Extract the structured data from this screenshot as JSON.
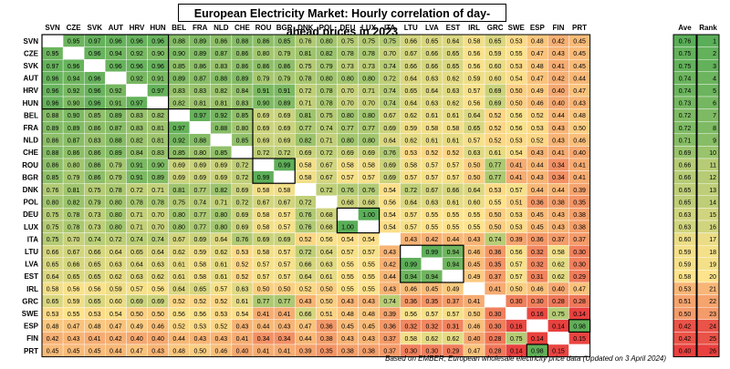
{
  "title": "European Electricity Market: Hourly correlation of day-ahead prices in 2023",
  "footnote": "Based on EMBER, European wholesale electricity price data (Updated on 3 April 2024)",
  "chart_data": {
    "type": "heatmap",
    "countries": [
      "SVN",
      "CZE",
      "SVK",
      "AUT",
      "HRV",
      "HUN",
      "BEL",
      "FRA",
      "NLD",
      "CHE",
      "ROU",
      "BGR",
      "DNK",
      "POL",
      "DEU",
      "LUX",
      "ITA",
      "LTU",
      "LVA",
      "EST",
      "IRL",
      "GRC",
      "SWE",
      "ESP",
      "FIN",
      "PRT"
    ],
    "matrix": [
      [
        null,
        0.95,
        0.97,
        0.96,
        0.96,
        0.96,
        0.88,
        0.89,
        0.86,
        0.88,
        0.86,
        0.85,
        0.76,
        0.8,
        0.75,
        0.75,
        0.75,
        0.66,
        0.65,
        0.64,
        0.58,
        0.65,
        0.53,
        0.48,
        0.42,
        0.45
      ],
      [
        0.95,
        null,
        0.96,
        0.94,
        0.92,
        0.9,
        0.9,
        0.89,
        0.87,
        0.86,
        0.8,
        0.79,
        0.81,
        0.82,
        0.78,
        0.78,
        0.7,
        0.67,
        0.66,
        0.65,
        0.56,
        0.59,
        0.55,
        0.47,
        0.43,
        0.45
      ],
      [
        0.97,
        0.96,
        null,
        0.96,
        0.96,
        0.96,
        0.85,
        0.86,
        0.83,
        0.86,
        0.86,
        0.86,
        0.75,
        0.79,
        0.73,
        0.73,
        0.74,
        0.66,
        0.66,
        0.65,
        0.56,
        0.6,
        0.53,
        0.48,
        0.41,
        0.45
      ],
      [
        0.96,
        0.94,
        0.96,
        null,
        0.92,
        0.91,
        0.89,
        0.87,
        0.88,
        0.89,
        0.79,
        0.79,
        0.78,
        0.8,
        0.8,
        0.8,
        0.72,
        0.64,
        0.63,
        0.62,
        0.59,
        0.6,
        0.54,
        0.47,
        0.42,
        0.44
      ],
      [
        0.96,
        0.92,
        0.96,
        0.92,
        null,
        0.97,
        0.83,
        0.83,
        0.82,
        0.84,
        0.91,
        0.91,
        0.72,
        0.78,
        0.7,
        0.71,
        0.74,
        0.65,
        0.64,
        0.63,
        0.57,
        0.69,
        0.5,
        0.49,
        0.4,
        0.47
      ],
      [
        0.96,
        0.9,
        0.96,
        0.91,
        0.97,
        null,
        0.82,
        0.81,
        0.81,
        0.83,
        0.9,
        0.89,
        0.71,
        0.78,
        0.7,
        0.7,
        0.74,
        0.64,
        0.63,
        0.62,
        0.56,
        0.69,
        0.5,
        0.46,
        0.4,
        0.43
      ],
      [
        0.88,
        0.9,
        0.85,
        0.89,
        0.83,
        0.82,
        null,
        0.97,
        0.92,
        0.85,
        0.69,
        0.69,
        0.81,
        0.75,
        0.8,
        0.8,
        0.67,
        0.62,
        0.61,
        0.61,
        0.64,
        0.52,
        0.56,
        0.52,
        0.44,
        0.48
      ],
      [
        0.89,
        0.89,
        0.86,
        0.87,
        0.83,
        0.81,
        0.97,
        null,
        0.88,
        0.8,
        0.69,
        0.69,
        0.77,
        0.74,
        0.77,
        0.77,
        0.69,
        0.59,
        0.58,
        0.58,
        0.65,
        0.52,
        0.56,
        0.53,
        0.43,
        0.5
      ],
      [
        0.86,
        0.87,
        0.83,
        0.88,
        0.82,
        0.81,
        0.92,
        0.88,
        null,
        0.85,
        0.69,
        0.69,
        0.82,
        0.71,
        0.8,
        0.8,
        0.64,
        0.62,
        0.61,
        0.61,
        0.57,
        0.52,
        0.53,
        0.52,
        0.43,
        0.46
      ],
      [
        0.88,
        0.86,
        0.86,
        0.89,
        0.84,
        0.83,
        0.85,
        0.8,
        0.85,
        null,
        0.72,
        0.72,
        0.69,
        0.72,
        0.69,
        0.69,
        0.76,
        0.53,
        0.52,
        0.52,
        0.63,
        0.61,
        0.54,
        0.43,
        0.41,
        0.4
      ],
      [
        0.86,
        0.8,
        0.86,
        0.79,
        0.91,
        0.9,
        0.69,
        0.69,
        0.69,
        0.72,
        null,
        0.99,
        0.58,
        0.67,
        0.58,
        0.58,
        0.69,
        0.58,
        0.57,
        0.57,
        0.5,
        0.77,
        0.41,
        0.44,
        0.34,
        0.41
      ],
      [
        0.85,
        0.79,
        0.86,
        0.79,
        0.91,
        0.89,
        0.69,
        0.69,
        0.69,
        0.72,
        0.99,
        null,
        0.58,
        0.67,
        0.57,
        0.57,
        0.69,
        0.57,
        0.57,
        0.57,
        0.5,
        0.77,
        0.41,
        0.43,
        0.34,
        0.41
      ],
      [
        0.76,
        0.81,
        0.75,
        0.78,
        0.72,
        0.71,
        0.81,
        0.77,
        0.82,
        0.69,
        0.58,
        0.58,
        null,
        0.72,
        0.76,
        0.76,
        0.54,
        0.72,
        0.67,
        0.66,
        0.64,
        0.53,
        0.57,
        0.44,
        0.44,
        0.39
      ],
      [
        0.8,
        0.82,
        0.79,
        0.8,
        0.78,
        0.78,
        0.75,
        0.74,
        0.71,
        0.72,
        0.67,
        0.67,
        0.72,
        null,
        0.68,
        0.68,
        0.56,
        0.64,
        0.63,
        0.61,
        0.6,
        0.55,
        0.51,
        0.36,
        0.38,
        0.35
      ],
      [
        0.75,
        0.78,
        0.73,
        0.8,
        0.71,
        0.7,
        0.8,
        0.77,
        0.8,
        0.69,
        0.58,
        0.57,
        0.76,
        0.68,
        null,
        1.0,
        0.54,
        0.57,
        0.55,
        0.55,
        0.55,
        0.5,
        0.53,
        0.45,
        0.43,
        0.38
      ],
      [
        0.75,
        0.78,
        0.73,
        0.8,
        0.71,
        0.7,
        0.8,
        0.77,
        0.8,
        0.69,
        0.58,
        0.57,
        0.76,
        0.68,
        1.0,
        null,
        0.54,
        0.57,
        0.55,
        0.55,
        0.55,
        0.5,
        0.53,
        0.45,
        0.43,
        0.38
      ],
      [
        0.75,
        0.7,
        0.74,
        0.72,
        0.74,
        0.74,
        0.67,
        0.69,
        0.64,
        0.76,
        0.69,
        0.69,
        0.52,
        0.56,
        0.54,
        0.54,
        null,
        0.43,
        0.42,
        0.44,
        0.43,
        0.74,
        0.39,
        0.36,
        0.37,
        0.37
      ],
      [
        0.66,
        0.67,
        0.66,
        0.64,
        0.65,
        0.64,
        0.62,
        0.59,
        0.62,
        0.53,
        0.58,
        0.57,
        0.72,
        0.64,
        0.57,
        0.57,
        0.43,
        null,
        0.99,
        0.94,
        0.46,
        0.36,
        0.56,
        0.32,
        0.58,
        0.3
      ],
      [
        0.65,
        0.66,
        0.65,
        0.63,
        0.64,
        0.63,
        0.61,
        0.58,
        0.61,
        0.52,
        0.57,
        0.57,
        0.66,
        0.63,
        0.55,
        0.55,
        0.42,
        0.99,
        null,
        0.94,
        0.45,
        0.35,
        0.57,
        0.32,
        0.62,
        0.3
      ],
      [
        0.64,
        0.65,
        0.65,
        0.62,
        0.63,
        0.62,
        0.61,
        0.58,
        0.61,
        0.52,
        0.57,
        0.57,
        0.64,
        0.61,
        0.55,
        0.55,
        0.44,
        0.94,
        0.94,
        null,
        0.49,
        0.37,
        0.57,
        0.31,
        0.62,
        0.29
      ],
      [
        0.58,
        0.56,
        0.56,
        0.59,
        0.57,
        0.56,
        0.64,
        0.65,
        0.57,
        0.63,
        0.5,
        0.5,
        0.52,
        0.5,
        0.55,
        0.55,
        0.43,
        0.46,
        0.45,
        0.49,
        null,
        0.41,
        0.5,
        0.46,
        0.4,
        0.47
      ],
      [
        0.65,
        0.59,
        0.65,
        0.6,
        0.69,
        0.69,
        0.52,
        0.52,
        0.52,
        0.61,
        0.77,
        0.77,
        0.43,
        0.5,
        0.43,
        0.43,
        0.74,
        0.36,
        0.35,
        0.37,
        0.41,
        null,
        0.3,
        0.3,
        0.28,
        0.28
      ],
      [
        0.53,
        0.55,
        0.53,
        0.54,
        0.5,
        0.5,
        0.56,
        0.56,
        0.53,
        0.54,
        0.41,
        0.41,
        0.66,
        0.51,
        0.48,
        0.48,
        0.39,
        0.56,
        0.57,
        0.57,
        0.5,
        0.3,
        null,
        0.16,
        0.75,
        0.14
      ],
      [
        0.48,
        0.47,
        0.48,
        0.47,
        0.49,
        0.46,
        0.52,
        0.53,
        0.52,
        0.43,
        0.44,
        0.43,
        0.47,
        0.36,
        0.45,
        0.45,
        0.36,
        0.32,
        0.32,
        0.31,
        0.46,
        0.3,
        0.16,
        null,
        0.14,
        0.98
      ],
      [
        0.42,
        0.43,
        0.41,
        0.42,
        0.4,
        0.4,
        0.44,
        0.43,
        0.43,
        0.41,
        0.34,
        0.34,
        0.44,
        0.38,
        0.43,
        0.43,
        0.37,
        0.58,
        0.62,
        0.62,
        0.4,
        0.28,
        0.75,
        0.14,
        null,
        0.15
      ],
      [
        0.45,
        0.45,
        0.45,
        0.44,
        0.47,
        0.43,
        0.48,
        0.5,
        0.46,
        0.4,
        0.41,
        0.41,
        0.39,
        0.35,
        0.38,
        0.38,
        0.37,
        0.3,
        0.3,
        0.29,
        0.47,
        0.28,
        0.14,
        0.98,
        0.15,
        null
      ]
    ],
    "summary_headers": [
      "Ave",
      "Rank"
    ],
    "average": [
      0.76,
      0.75,
      0.75,
      0.74,
      0.74,
      0.73,
      0.72,
      0.72,
      0.71,
      0.69,
      0.66,
      0.66,
      0.65,
      0.65,
      0.63,
      0.63,
      0.6,
      0.59,
      0.59,
      0.58,
      0.53,
      0.51,
      0.5,
      0.42,
      0.42,
      0.4
    ],
    "rank": [
      1,
      2,
      3,
      4,
      5,
      6,
      7,
      8,
      9,
      10,
      11,
      12,
      13,
      14,
      15,
      16,
      17,
      18,
      19,
      20,
      21,
      22,
      23,
      24,
      25,
      26
    ],
    "color_scale": {
      "low": "#e8413f",
      "mid": "#fde38c",
      "high": "#5aae58",
      "min": 0.14,
      "mid_value": 0.55,
      "max": 1.0
    }
  }
}
